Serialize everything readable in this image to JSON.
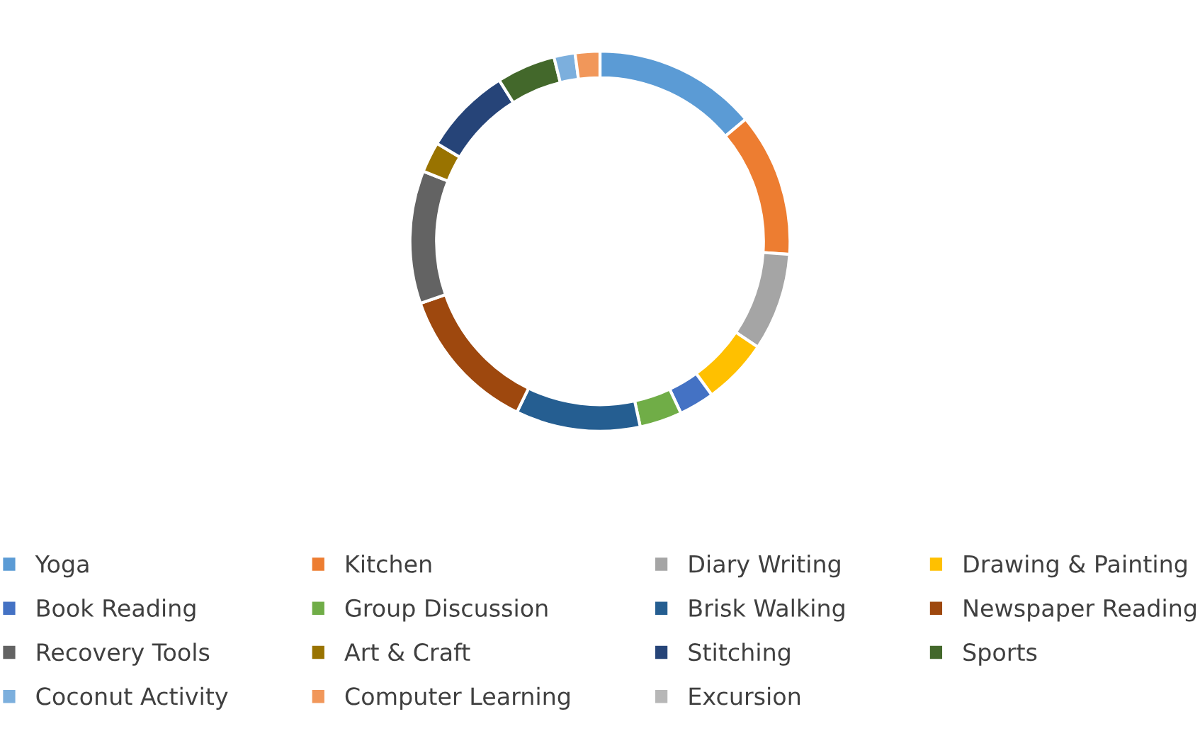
{
  "chart_data": {
    "type": "donut",
    "categories": [
      "Yoga",
      "Kitchen",
      "Diary Writing",
      "Drawing & Painting",
      "Book Reading",
      "Group Discussion",
      "Brisk Walking",
      "Newspaper Reading",
      "Recovery Tools",
      "Art & Craft",
      "Stitching",
      "Sports",
      "Coconut Activity",
      "Computer Learning",
      "Excursion"
    ],
    "values": [
      13.9,
      12.2,
      8.3,
      5.6,
      3,
      3.6,
      10.6,
      12.5,
      11.3,
      2.6,
      7.5,
      5,
      1.8,
      2.1,
      0
    ],
    "colors": [
      "#5b9bd5",
      "#ed7d31",
      "#a5a5a5",
      "#ffc000",
      "#4472c4",
      "#70ad47",
      "#255e91",
      "#9e480e",
      "#636363",
      "#997300",
      "#264478",
      "#43682b",
      "#7cafdd",
      "#f1975a",
      "#b7b7b7"
    ],
    "legend": "bottom"
  }
}
